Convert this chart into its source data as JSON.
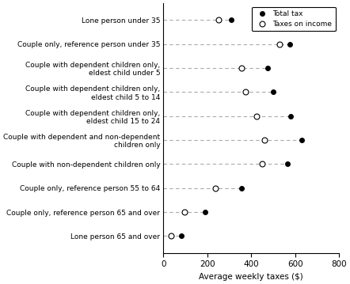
{
  "categories": [
    "Lone person under 35",
    "Couple only, reference person under 35",
    "Couple with dependent children only,\neldest child under 5",
    "Couple with dependent children only,\neldest child 5 to 14",
    "Couple with dependent children only,\neldest child 15 to 24",
    "Couple with dependent and non-dependent\nchildren only",
    "Couple with non-dependent children only",
    "Couple only, reference person 55 to 64",
    "Couple only, reference person 65 and over",
    "Lone person 65 and over"
  ],
  "total_tax": [
    310,
    575,
    475,
    500,
    580,
    630,
    565,
    355,
    190,
    80
  ],
  "taxes_on_income": [
    250,
    530,
    355,
    375,
    425,
    460,
    450,
    235,
    95,
    35
  ],
  "xlim": [
    0,
    800
  ],
  "xticks": [
    0,
    200,
    400,
    600,
    800
  ],
  "xlabel": "Average weekly taxes ($)",
  "legend_total": "Total tax",
  "legend_income": "Taxes on income",
  "bg_color": "#ffffff",
  "line_color": "#aaaaaa",
  "marker_filled_color": "#000000",
  "marker_open_color": "#000000",
  "label_fontsize": 6.5,
  "tick_fontsize": 7.5
}
